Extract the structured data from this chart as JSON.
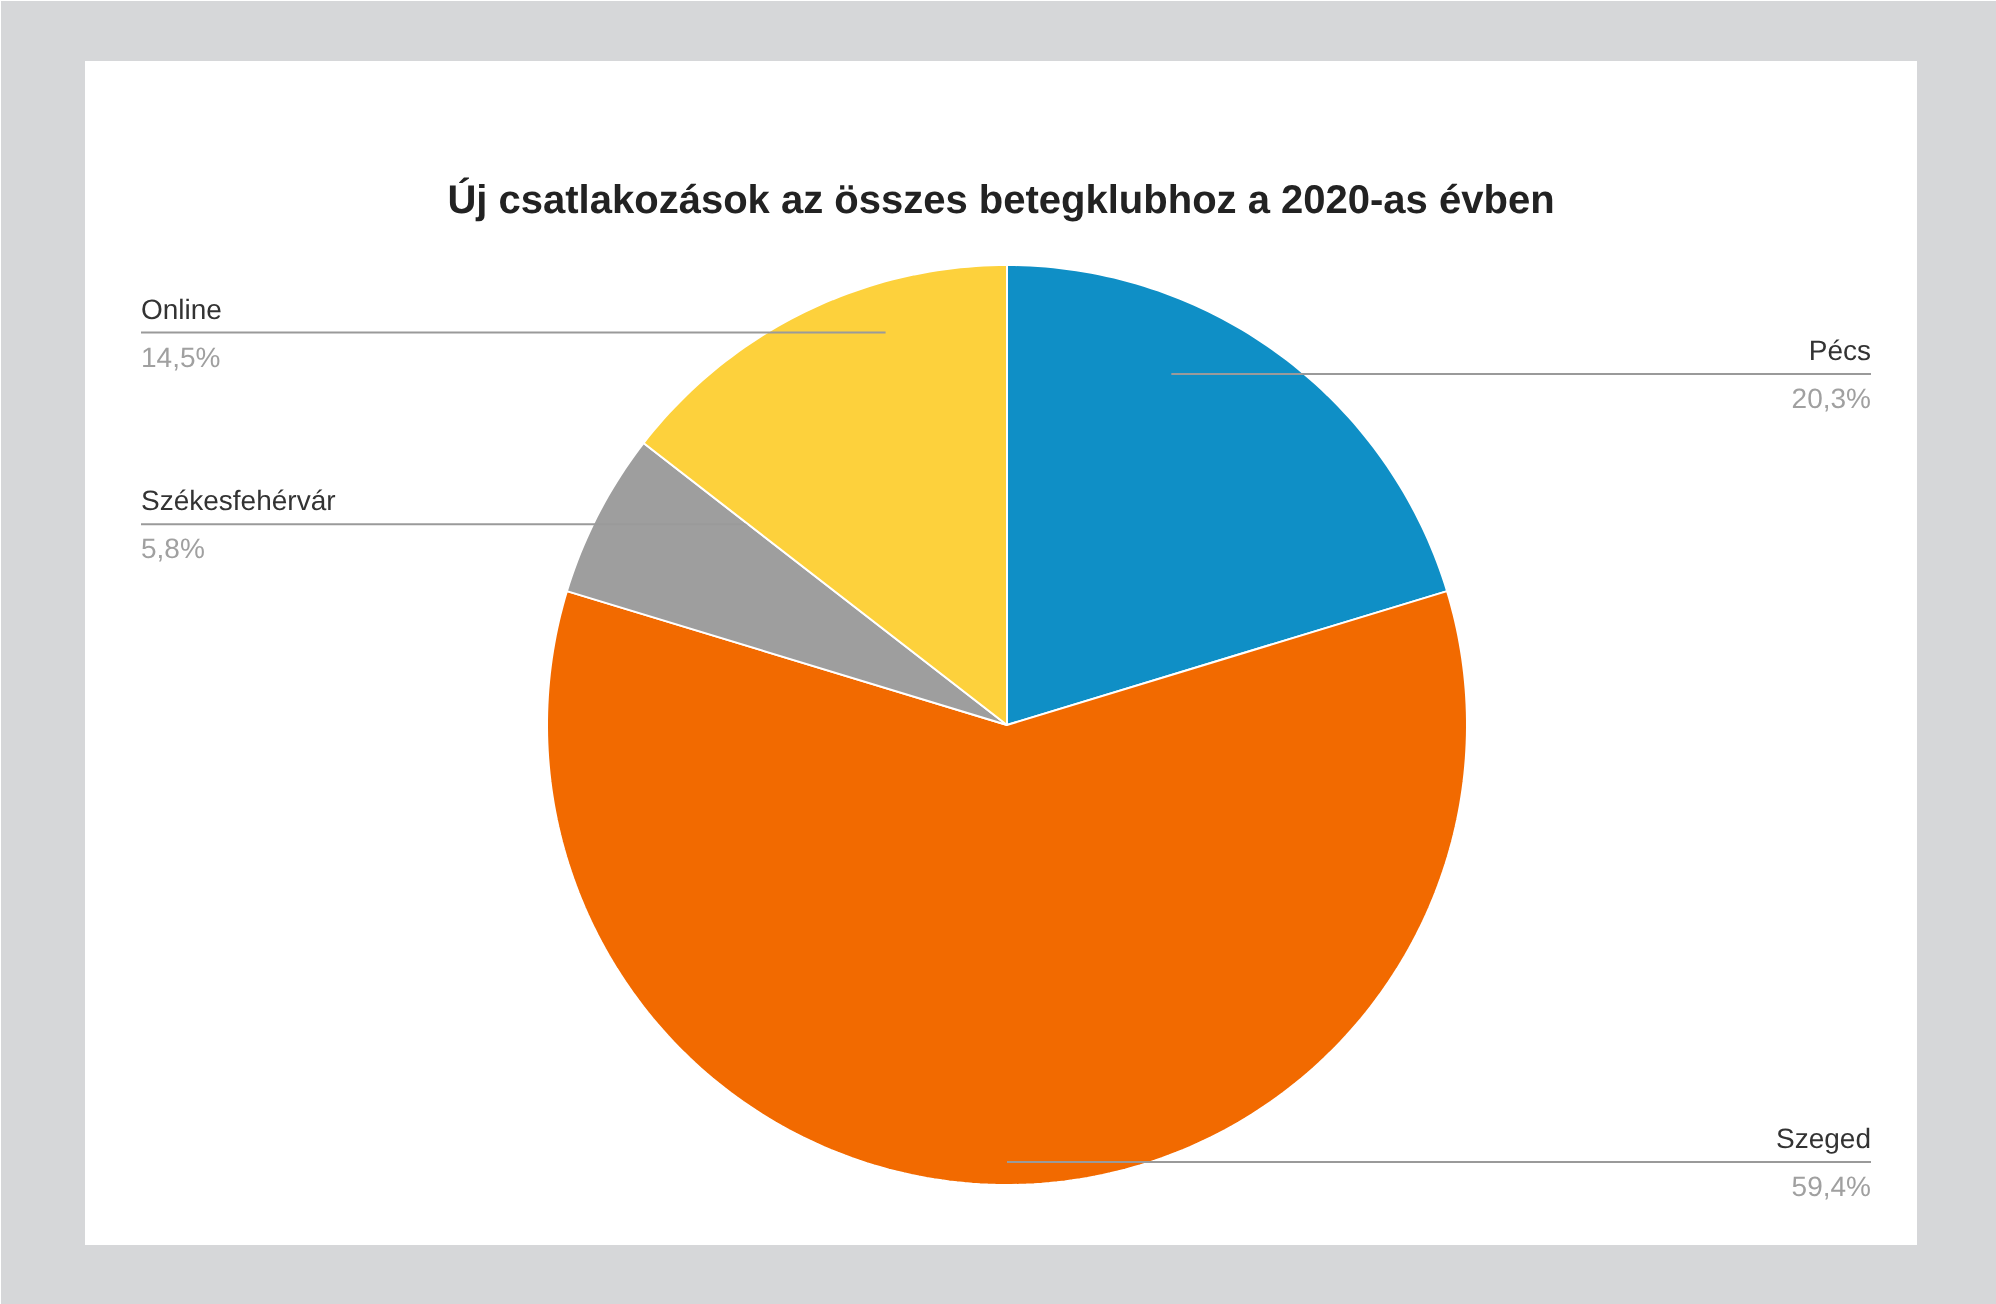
{
  "chart_data": {
    "type": "pie",
    "title": "Új csatlakozások az összes betegklubhoz a 2020-as évben",
    "categories": [
      "Pécs",
      "Szeged",
      "Székesfehérvár",
      "Online"
    ],
    "values": [
      20.3,
      59.4,
      5.8,
      14.5
    ],
    "value_labels": [
      "20,3%",
      "59,4%",
      "5,8%",
      "14,5%"
    ],
    "colors": [
      "#0f8fc6",
      "#f26a00",
      "#9e9e9e",
      "#fdd13c"
    ]
  }
}
